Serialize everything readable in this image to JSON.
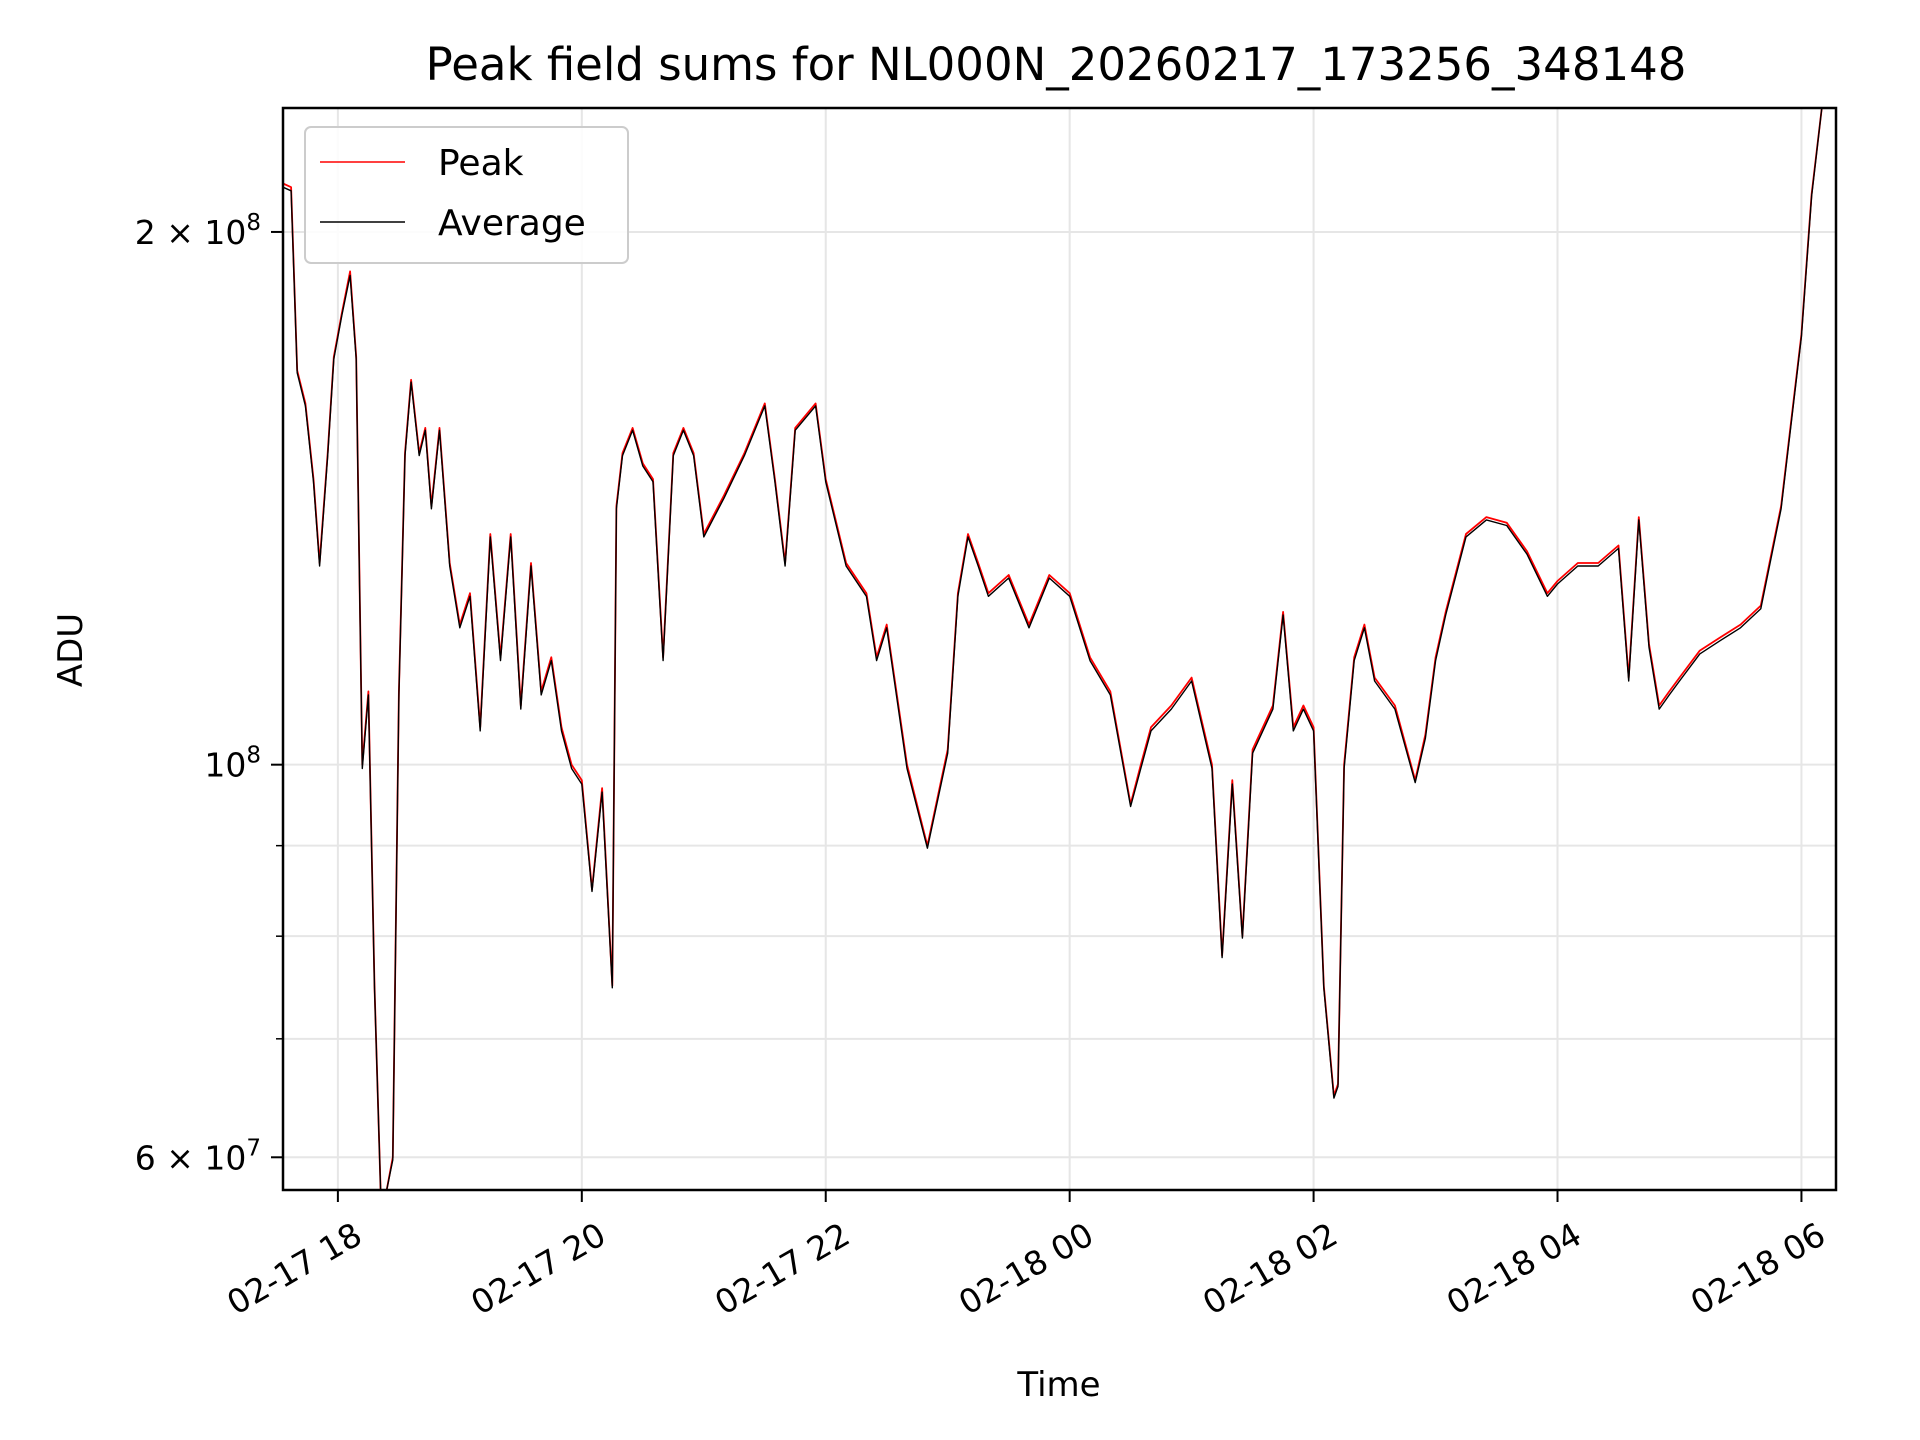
{
  "chart_data": {
    "type": "line",
    "title": "Peak field sums for NL000N_20260217_173256_348148",
    "xlabel": "Time",
    "ylabel": "ADU",
    "yscale": "log",
    "grid": true,
    "legend_position": "upper-left",
    "xlim": [
      "2026-02-17 17:33",
      "2026-02-18 06:17"
    ],
    "ylim": [
      57500000,
      235000000
    ],
    "x_ticks": [
      {
        "value": "2026-02-17 18:00",
        "label": "02-17 18"
      },
      {
        "value": "2026-02-17 20:00",
        "label": "02-17 20"
      },
      {
        "value": "2026-02-17 22:00",
        "label": "02-17 22"
      },
      {
        "value": "2026-02-18 00:00",
        "label": "02-18 00"
      },
      {
        "value": "2026-02-18 02:00",
        "label": "02-18 02"
      },
      {
        "value": "2026-02-18 04:00",
        "label": "02-18 04"
      },
      {
        "value": "2026-02-18 06:00",
        "label": "02-18 06"
      }
    ],
    "y_major_ticks": [
      {
        "value": 60000000,
        "base": "6 × 10",
        "exp": "7"
      },
      {
        "value": 100000000,
        "base": "10",
        "exp": "8"
      },
      {
        "value": 200000000,
        "base": "2 × 10",
        "exp": "8"
      }
    ],
    "y_minor_ticks": [
      70000000,
      80000000,
      90000000
    ],
    "x": [
      "2026-02-17 17:33",
      "2026-02-17 17:37",
      "2026-02-17 17:40",
      "2026-02-17 17:44",
      "2026-02-17 17:48",
      "2026-02-17 17:51",
      "2026-02-17 17:55",
      "2026-02-17 17:58",
      "2026-02-17 18:02",
      "2026-02-17 18:06",
      "2026-02-17 18:09",
      "2026-02-17 18:12",
      "2026-02-17 18:15",
      "2026-02-17 18:18",
      "2026-02-17 18:21",
      "2026-02-17 18:24",
      "2026-02-17 18:27",
      "2026-02-17 18:30",
      "2026-02-17 18:33",
      "2026-02-17 18:36",
      "2026-02-17 18:40",
      "2026-02-17 18:43",
      "2026-02-17 18:46",
      "2026-02-17 18:50",
      "2026-02-17 18:55",
      "2026-02-17 19:00",
      "2026-02-17 19:05",
      "2026-02-17 19:10",
      "2026-02-17 19:15",
      "2026-02-17 19:20",
      "2026-02-17 19:25",
      "2026-02-17 19:30",
      "2026-02-17 19:35",
      "2026-02-17 19:40",
      "2026-02-17 19:45",
      "2026-02-17 19:50",
      "2026-02-17 19:55",
      "2026-02-17 20:00",
      "2026-02-17 20:05",
      "2026-02-17 20:10",
      "2026-02-17 20:15",
      "2026-02-17 20:17",
      "2026-02-17 20:20",
      "2026-02-17 20:25",
      "2026-02-17 20:30",
      "2026-02-17 20:35",
      "2026-02-17 20:40",
      "2026-02-17 20:45",
      "2026-02-17 20:50",
      "2026-02-17 20:55",
      "2026-02-17 21:00",
      "2026-02-17 21:10",
      "2026-02-17 21:20",
      "2026-02-17 21:30",
      "2026-02-17 21:35",
      "2026-02-17 21:40",
      "2026-02-17 21:45",
      "2026-02-17 21:55",
      "2026-02-17 22:00",
      "2026-02-17 22:10",
      "2026-02-17 22:20",
      "2026-02-17 22:25",
      "2026-02-17 22:30",
      "2026-02-17 22:40",
      "2026-02-17 22:50",
      "2026-02-17 23:00",
      "2026-02-17 23:05",
      "2026-02-17 23:10",
      "2026-02-17 23:15",
      "2026-02-17 23:20",
      "2026-02-17 23:30",
      "2026-02-17 23:40",
      "2026-02-17 23:50",
      "2026-02-18 00:00",
      "2026-02-18 00:10",
      "2026-02-18 00:20",
      "2026-02-18 00:30",
      "2026-02-18 00:35",
      "2026-02-18 00:40",
      "2026-02-18 00:50",
      "2026-02-18 01:00",
      "2026-02-18 01:10",
      "2026-02-18 01:15",
      "2026-02-18 01:20",
      "2026-02-18 01:25",
      "2026-02-18 01:30",
      "2026-02-18 01:40",
      "2026-02-18 01:45",
      "2026-02-18 01:50",
      "2026-02-18 01:55",
      "2026-02-18 02:00",
      "2026-02-18 02:05",
      "2026-02-18 02:10",
      "2026-02-18 02:12",
      "2026-02-18 02:15",
      "2026-02-18 02:20",
      "2026-02-18 02:25",
      "2026-02-18 02:30",
      "2026-02-18 02:40",
      "2026-02-18 02:50",
      "2026-02-18 02:55",
      "2026-02-18 03:00",
      "2026-02-18 03:05",
      "2026-02-18 03:15",
      "2026-02-18 03:25",
      "2026-02-18 03:35",
      "2026-02-18 03:45",
      "2026-02-18 03:55",
      "2026-02-18 04:00",
      "2026-02-18 04:10",
      "2026-02-18 04:20",
      "2026-02-18 04:30",
      "2026-02-18 04:35",
      "2026-02-18 04:40",
      "2026-02-18 04:45",
      "2026-02-18 04:50",
      "2026-02-18 04:55",
      "2026-02-18 05:00",
      "2026-02-18 05:10",
      "2026-02-18 05:20",
      "2026-02-18 05:30",
      "2026-02-18 05:40",
      "2026-02-18 05:50",
      "2026-02-18 06:00",
      "2026-02-18 06:05",
      "2026-02-18 06:10"
    ],
    "series": [
      {
        "name": "Peak",
        "color": "#ff0000",
        "values": [
          213000000,
          212000000,
          167000000,
          160000000,
          145000000,
          130000000,
          150000000,
          170000000,
          180000000,
          190000000,
          170000000,
          100000000,
          110000000,
          75000000,
          57500000,
          57500000,
          60000000,
          110000000,
          150000000,
          165000000,
          150000000,
          155000000,
          140000000,
          155000000,
          130000000,
          120000000,
          125000000,
          105000000,
          135000000,
          115000000,
          135000000,
          108000000,
          130000000,
          110000000,
          115000000,
          105000000,
          100000000,
          98000000,
          85000000,
          97000000,
          75000000,
          140000000,
          150000000,
          155000000,
          148000000,
          145000000,
          115000000,
          150000000,
          155000000,
          150000000,
          135000000,
          142000000,
          150000000,
          160000000,
          145000000,
          130000000,
          155000000,
          160000000,
          145000000,
          130000000,
          125000000,
          115000000,
          120000000,
          100000000,
          90000000,
          102000000,
          125000000,
          135000000,
          130000000,
          125000000,
          128000000,
          120000000,
          128000000,
          125000000,
          115000000,
          110000000,
          95000000,
          100000000,
          105000000,
          108000000,
          112000000,
          100000000,
          78000000,
          98000000,
          80000000,
          102000000,
          108000000,
          122000000,
          105000000,
          108000000,
          105000000,
          75000000,
          65000000,
          66000000,
          100000000,
          115000000,
          120000000,
          112000000,
          108000000,
          98000000,
          104000000,
          115000000,
          122000000,
          135000000,
          138000000,
          137000000,
          132000000,
          125000000,
          127000000,
          130000000,
          130000000,
          133000000,
          112000000,
          138000000,
          117000000,
          108000000,
          110000000,
          112000000,
          116000000,
          118000000,
          120000000,
          123000000,
          140000000,
          175000000,
          210000000,
          235000000
        ]
      },
      {
        "name": "Average",
        "color": "#000000",
        "values": [
          212000000,
          211000000,
          166500000,
          159500000,
          144500000,
          129500000,
          149500000,
          169500000,
          179500000,
          189000000,
          169500000,
          99500000,
          109500000,
          74800000,
          57400000,
          57400000,
          59800000,
          109500000,
          149500000,
          164500000,
          149500000,
          154500000,
          139500000,
          154500000,
          129500000,
          119500000,
          124500000,
          104500000,
          134500000,
          114500000,
          134500000,
          107500000,
          129500000,
          109500000,
          114500000,
          104500000,
          99500000,
          97500000,
          84800000,
          96500000,
          74800000,
          139500000,
          149500000,
          154500000,
          147500000,
          144500000,
          114500000,
          149500000,
          154500000,
          149500000,
          134500000,
          141500000,
          149500000,
          159500000,
          144500000,
          129500000,
          154500000,
          159500000,
          144500000,
          129500000,
          124500000,
          114500000,
          119500000,
          99500000,
          89700000,
          101500000,
          124500000,
          134500000,
          129500000,
          124500000,
          127500000,
          119500000,
          127500000,
          124500000,
          114500000,
          109500000,
          94700000,
          99500000,
          104500000,
          107500000,
          111500000,
          99500000,
          77800000,
          97500000,
          79800000,
          101500000,
          107500000,
          121500000,
          104500000,
          107500000,
          104500000,
          74800000,
          64800000,
          65800000,
          99500000,
          114500000,
          119500000,
          111500000,
          107500000,
          97700000,
          103500000,
          114500000,
          121500000,
          134500000,
          137500000,
          136500000,
          131500000,
          124500000,
          126500000,
          129500000,
          129500000,
          132500000,
          111500000,
          137500000,
          116500000,
          107500000,
          109500000,
          111500000,
          115500000,
          117500000,
          119500000,
          122500000,
          139500000,
          174500000,
          209500000,
          235000000
        ]
      }
    ]
  }
}
